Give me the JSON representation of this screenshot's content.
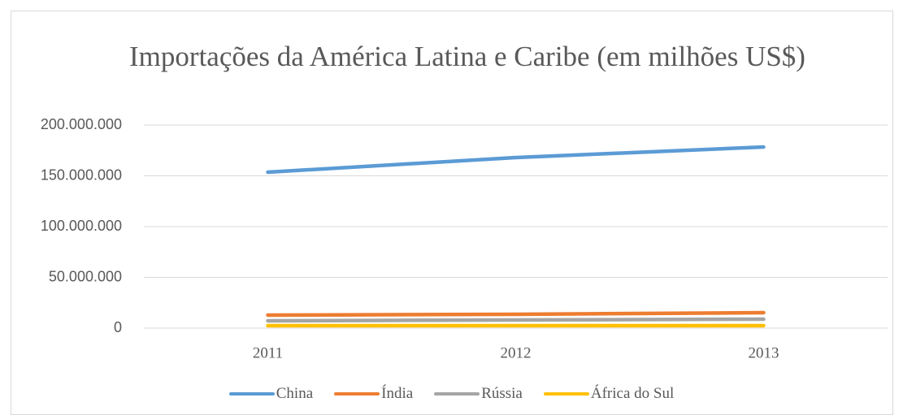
{
  "chart_data": {
    "type": "line",
    "title": "Importações da América Latina e Caribe (em milhões US$)",
    "categories": [
      "2011",
      "2012",
      "2013"
    ],
    "series": [
      {
        "name": "China",
        "color": "#5b9bd5",
        "values": [
          153600000,
          168000000,
          178400000
        ]
      },
      {
        "name": "Índia",
        "color": "#ed7d31",
        "values": [
          12800000,
          13600000,
          15200000
        ]
      },
      {
        "name": "Rússia",
        "color": "#a5a5a5",
        "values": [
          7200000,
          8000000,
          8800000
        ]
      },
      {
        "name": "África do Sul",
        "color": "#ffc000",
        "values": [
          2400000,
          2400000,
          2400000
        ]
      }
    ],
    "ylim": [
      0,
      200000000
    ],
    "yticks": [
      0,
      {
        "value": 50000000,
        "label": "50.000.000"
      },
      {
        "value": 100000000,
        "label": "100.000.000"
      },
      {
        "value": 150000000,
        "label": "150.000.000"
      },
      {
        "value": 200000000,
        "label": "200.000.000"
      }
    ],
    "grid": true,
    "legend": "bottom"
  }
}
